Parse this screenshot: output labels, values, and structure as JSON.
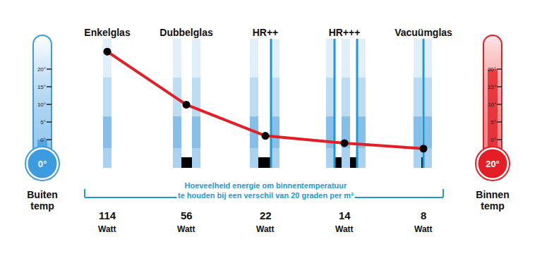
{
  "chart_data": {
    "type": "line",
    "categories": [
      "Enkelglas",
      "Dubbelglas",
      "HR++",
      "HR+++",
      "Vacuümglas"
    ],
    "values": [
      114,
      56,
      22,
      14,
      8
    ],
    "value_labels": [
      "114\nWatt",
      "56\nWatt",
      "22\nWatt",
      "14\nWatt",
      "8\nWatt"
    ],
    "data_labels": true,
    "color": "#e31e24",
    "marker": "circle",
    "line_style": "solid",
    "ylim": [
      -13,
      128
    ],
    "tick_labels": "x",
    "grid": false,
    "annotations": [
      {
        "text": "Hoeveelheid energie om binnentemperatuur\nte houden bij een verschil van 20 graden per m²"
      }
    ]
  },
  "thermometers": [
    {
      "label": "Buiten\ntemp",
      "value": 0,
      "value_label": "0°",
      "color": "#3d9be0",
      "ticks": [
        {
          "value": 20,
          "label": "20°"
        },
        {
          "value": 15,
          "label": "15°"
        },
        {
          "value": 10,
          "label": "10°"
        },
        {
          "value": 5,
          "label": "5°"
        },
        {
          "value": 0,
          "label": "0°"
        }
      ]
    },
    {
      "label": "Binnen\ntemp",
      "value": 20,
      "value_label": "20°",
      "color": "#e31e24",
      "ticks": [
        {
          "value": 20,
          "label": "20°"
        },
        {
          "value": 15,
          "label": "15°"
        },
        {
          "value": 10,
          "label": "10°"
        },
        {
          "value": 5,
          "label": "5°"
        },
        {
          "value": 0,
          "label": "0°"
        }
      ]
    }
  ]
}
